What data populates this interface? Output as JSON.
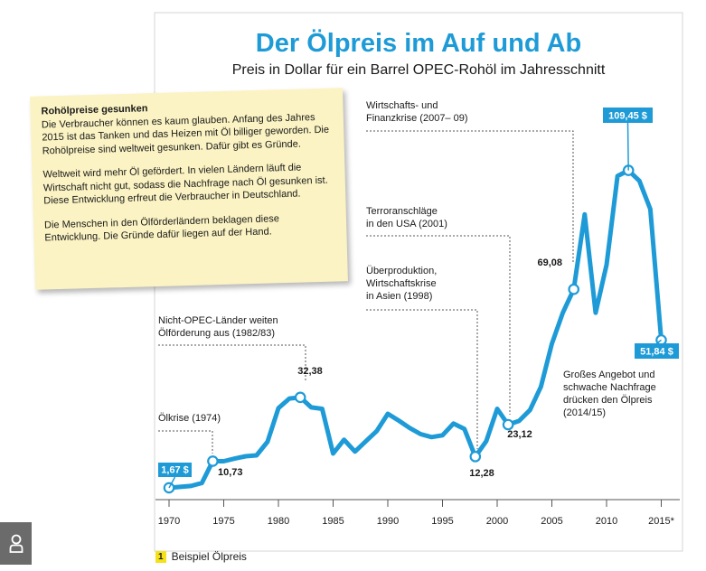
{
  "title": "Der Ölpreis im Auf und Ab",
  "subtitle": "Preis in Dollar für ein Barrel OPEC-Rohöl im Jahresschnitt",
  "infobox": {
    "heading": "Rohölpreise gesunken",
    "p1": "Die Verbraucher können es kaum glauben. Anfang des Jahres 2015 ist das Tanken und das Heizen mit Öl billiger geworden. Die Rohölpreise sind weltweit gesunken. Dafür gibt es Gründe.",
    "p2": "Weltweit wird mehr Öl gefördert. In vielen Ländern läuft die Wirtschaft nicht gut, sodass die Nachfrage nach Öl gesunken ist. Diese Entwicklung erfreut die Verbraucher in Deutschland.",
    "p3": "Die Menschen in den Ölförderländern beklagen diese Entwicklung. Die Gründe dafür liegen auf der Hand."
  },
  "footnote": {
    "number": "1",
    "text": "Beispiel Ölpreis"
  },
  "colors": {
    "line": "#1e9bd7",
    "title": "#1e9bd7",
    "infobox": "#fbf3c3",
    "badge": "#1e9bd7"
  },
  "icons": {
    "user": "user-icon"
  },
  "chart_data": {
    "type": "line",
    "title": "Der Ölpreis im Auf und Ab",
    "subtitle": "Preis in Dollar für ein Barrel OPEC-Rohöl im Jahresschnitt",
    "x_ticks": [
      "1970",
      "1975",
      "1980",
      "1985",
      "1990",
      "1995",
      "2000",
      "2005",
      "2010",
      "2015*"
    ],
    "xlim": [
      1970,
      2015
    ],
    "ylim": [
      0,
      120
    ],
    "grid": false,
    "legend": "none",
    "series": [
      {
        "values": [
          {
            "x": 1970,
            "y": 1.67
          },
          {
            "x": 1971,
            "y": 2.0
          },
          {
            "x": 1972,
            "y": 2.3
          },
          {
            "x": 1973,
            "y": 3.3
          },
          {
            "x": 1974,
            "y": 10.73
          },
          {
            "x": 1975,
            "y": 10.7
          },
          {
            "x": 1976,
            "y": 11.6
          },
          {
            "x": 1977,
            "y": 12.4
          },
          {
            "x": 1978,
            "y": 12.7
          },
          {
            "x": 1979,
            "y": 17.3
          },
          {
            "x": 1980,
            "y": 28.7
          },
          {
            "x": 1981,
            "y": 32.0
          },
          {
            "x": 1982,
            "y": 32.38
          },
          {
            "x": 1983,
            "y": 29.0
          },
          {
            "x": 1984,
            "y": 28.5
          },
          {
            "x": 1985,
            "y": 13.3
          },
          {
            "x": 1986,
            "y": 18.0
          },
          {
            "x": 1987,
            "y": 14.0
          },
          {
            "x": 1988,
            "y": 17.5
          },
          {
            "x": 1989,
            "y": 21.0
          },
          {
            "x": 1990,
            "y": 26.8
          },
          {
            "x": 1991,
            "y": 24.5
          },
          {
            "x": 1992,
            "y": 22.0
          },
          {
            "x": 1993,
            "y": 19.9
          },
          {
            "x": 1994,
            "y": 18.9
          },
          {
            "x": 1995,
            "y": 19.5
          },
          {
            "x": 1996,
            "y": 23.5
          },
          {
            "x": 1997,
            "y": 21.7
          },
          {
            "x": 1998,
            "y": 12.28
          },
          {
            "x": 1999,
            "y": 17.5
          },
          {
            "x": 2000,
            "y": 28.5
          },
          {
            "x": 2001,
            "y": 23.12
          },
          {
            "x": 2002,
            "y": 24.4
          },
          {
            "x": 2003,
            "y": 28.1
          },
          {
            "x": 2004,
            "y": 36.0
          },
          {
            "x": 2005,
            "y": 50.6
          },
          {
            "x": 2006,
            "y": 61.1
          },
          {
            "x": 2007,
            "y": 69.08
          },
          {
            "x": 2008,
            "y": 94.5
          },
          {
            "x": 2009,
            "y": 61.1
          },
          {
            "x": 2010,
            "y": 77.4
          },
          {
            "x": 2011,
            "y": 107.5
          },
          {
            "x": 2012,
            "y": 109.45
          },
          {
            "x": 2013,
            "y": 105.9
          },
          {
            "x": 2014,
            "y": 96.3
          },
          {
            "x": 2015,
            "y": 51.84
          }
        ]
      }
    ],
    "value_labels": [
      {
        "year": 1970,
        "text": "1,67 $",
        "style": "badge"
      },
      {
        "year": 1974,
        "text": "10,73",
        "style": "plain"
      },
      {
        "year": 1982,
        "text": "32,38",
        "style": "plain"
      },
      {
        "year": 1998,
        "text": "12,28",
        "style": "plain"
      },
      {
        "year": 2001,
        "text": "23,12",
        "style": "plain"
      },
      {
        "year": 2007,
        "text": "69,08",
        "style": "plain"
      },
      {
        "year": 2012,
        "text": "109,45 $",
        "style": "badge"
      },
      {
        "year": 2015,
        "text": "51,84 $",
        "style": "badge"
      }
    ],
    "annotations": [
      {
        "year": 1974,
        "lines": [
          "Ölkrise (1974)"
        ]
      },
      {
        "year": 1982,
        "lines": [
          "Nicht-OPEC-Länder weiten",
          "Ölförderung aus (1982/83)"
        ]
      },
      {
        "year": 1998,
        "lines": [
          "Überproduktion,",
          "Wirtschaftskrise",
          "in Asien (1998)"
        ]
      },
      {
        "year": 2001,
        "lines": [
          "Terroranschläge",
          "in den USA (2001)"
        ]
      },
      {
        "year": 2007,
        "lines": [
          "Wirtschafts- und",
          "Finanzkrise (2007– 09)"
        ]
      },
      {
        "year": 2015,
        "lines": [
          "Großes Angebot und",
          "schwache Nachfrage",
          "drücken den Ölpreis",
          "(2014/15)"
        ]
      }
    ]
  }
}
